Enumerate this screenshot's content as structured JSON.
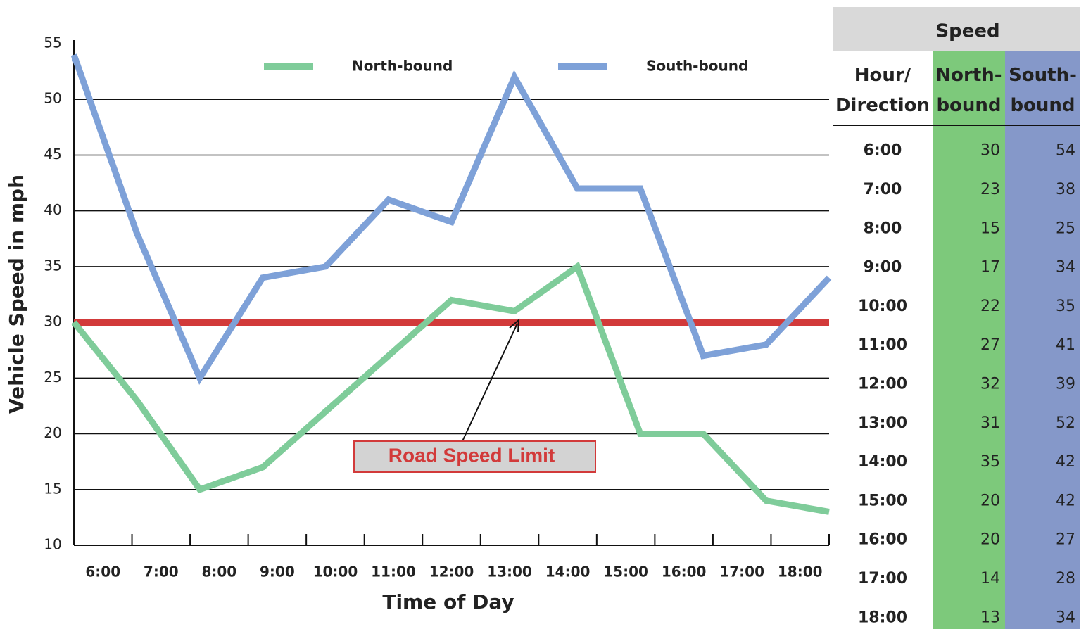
{
  "chart_data": {
    "type": "line",
    "xlabel": "Time of Day",
    "ylabel": "Vehicle Speed  in mph",
    "categories": [
      "6:00",
      "7:00",
      "8:00",
      "9:00",
      "10:00",
      "11:00",
      "12:00",
      "13:00",
      "14:00",
      "15:00",
      "16:00",
      "17:00",
      "18:00"
    ],
    "series": [
      {
        "name": "North-bound",
        "color": "#7fcc9a",
        "values": [
          30,
          23,
          15,
          17,
          22,
          27,
          32,
          31,
          35,
          20,
          20,
          14,
          13
        ]
      },
      {
        "name": "South-bound",
        "color": "#7ea1d8",
        "values": [
          54,
          38,
          25,
          34,
          35,
          41,
          39,
          52,
          42,
          42,
          27,
          28,
          34
        ]
      }
    ],
    "ylim": [
      10,
      55
    ],
    "yticks": [
      10,
      15,
      20,
      25,
      30,
      35,
      40,
      45,
      50,
      55
    ],
    "grid": true,
    "speed_limit": {
      "value": 30,
      "color": "#d23a3a",
      "label": "Road Speed Limit"
    }
  },
  "table": {
    "title": "Speed",
    "columns": [
      "Hour/ Direction",
      "North- bound",
      "South- bound"
    ],
    "colors": [
      "#ffffff",
      "#7dc97b",
      "#8598c9"
    ],
    "header_bg": "#d9d9d9"
  }
}
